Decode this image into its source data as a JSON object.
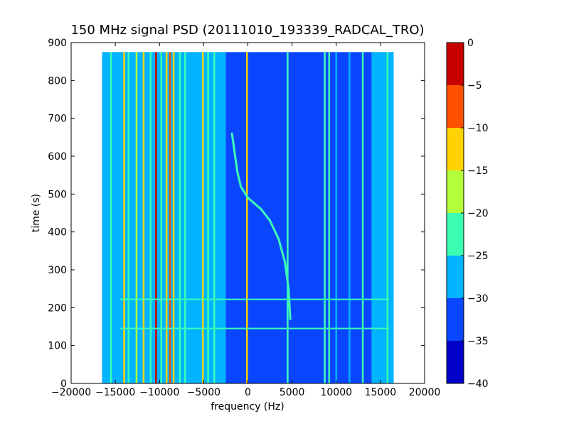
{
  "chart_data": {
    "type": "heatmap",
    "title": "150 MHz signal PSD (20111010_193339_RADCAL_TRO)",
    "xlabel": "frequency (Hz)",
    "ylabel": "time (s)",
    "xlim": [
      -20000,
      20000
    ],
    "ylim": [
      0,
      900
    ],
    "x_ticks": [
      "−20000",
      "−15000",
      "−10000",
      "−5000",
      "0",
      "5000",
      "10000",
      "15000",
      "20000"
    ],
    "x_tick_values": [
      -20000,
      -15000,
      -10000,
      -5000,
      0,
      5000,
      10000,
      15000,
      20000
    ],
    "y_ticks": [
      "0",
      "100",
      "200",
      "300",
      "400",
      "500",
      "600",
      "700",
      "800",
      "900"
    ],
    "y_tick_values": [
      0,
      100,
      200,
      300,
      400,
      500,
      600,
      700,
      800,
      900
    ],
    "data_extent": {
      "x": [
        -16500,
        16500
      ],
      "y": [
        0,
        875
      ]
    },
    "colorbar": {
      "ticks": [
        "0",
        "−5",
        "−10",
        "−15",
        "−20",
        "−25",
        "−30",
        "−35",
        "−40"
      ],
      "tick_values": [
        0,
        -5,
        -10,
        -15,
        -20,
        -25,
        -30,
        -35,
        -40
      ],
      "range": [
        -40,
        0
      ],
      "levels": [
        {
          "from": -40,
          "to": -35,
          "color": "#0000c8"
        },
        {
          "from": -35,
          "to": -30,
          "color": "#0a46ff"
        },
        {
          "from": -30,
          "to": -25,
          "color": "#00b4ff"
        },
        {
          "from": -25,
          "to": -20,
          "color": "#3cffb4"
        },
        {
          "from": -20,
          "to": -15,
          "color": "#b4ff3c"
        },
        {
          "from": -15,
          "to": -10,
          "color": "#ffd200"
        },
        {
          "from": -10,
          "to": -5,
          "color": "#ff5000"
        },
        {
          "from": -5,
          "to": 0,
          "color": "#c80000"
        }
      ]
    },
    "regions": [
      {
        "x": [
          -16500,
          -2500
        ],
        "level": -27
      },
      {
        "x": [
          -2500,
          3500
        ],
        "level": -31
      },
      {
        "x": [
          3500,
          14000
        ],
        "level": -33
      },
      {
        "x": [
          14000,
          16500
        ],
        "level": -28
      }
    ],
    "vertical_lines": [
      {
        "x": -15500,
        "level": -23
      },
      {
        "x": -14000,
        "level": -13
      },
      {
        "x": -13500,
        "level": -22
      },
      {
        "x": -12600,
        "level": -18
      },
      {
        "x": -11800,
        "level": -13
      },
      {
        "x": -11000,
        "level": -23
      },
      {
        "x": -10400,
        "level": -3
      },
      {
        "x": -9800,
        "level": -22
      },
      {
        "x": -9200,
        "level": -13
      },
      {
        "x": -8800,
        "level": -8
      },
      {
        "x": -8400,
        "level": -13
      },
      {
        "x": -7700,
        "level": -22
      },
      {
        "x": -7100,
        "level": -23
      },
      {
        "x": -5100,
        "level": -13
      },
      {
        "x": -4500,
        "level": -22
      },
      {
        "x": -3800,
        "level": -23
      },
      {
        "x": -100,
        "level": -13
      },
      {
        "x": 4500,
        "level": -22
      },
      {
        "x": 8700,
        "level": -23
      },
      {
        "x": 9200,
        "level": -22
      },
      {
        "x": 10000,
        "level": -26
      },
      {
        "x": 11500,
        "level": -26
      },
      {
        "x": 13000,
        "level": -23
      },
      {
        "x": 15800,
        "level": -22
      }
    ],
    "horizontal_lines": [
      {
        "y": 145,
        "x": [
          -14500,
          16000
        ],
        "level": -22
      },
      {
        "y": 222,
        "x": [
          -14500,
          16000
        ],
        "level": -23
      }
    ],
    "signal_track": {
      "level": -20,
      "points": [
        [
          4800,
          170
        ],
        [
          4600,
          250
        ],
        [
          4200,
          320
        ],
        [
          3500,
          380
        ],
        [
          2500,
          430
        ],
        [
          1500,
          460
        ],
        [
          0,
          490
        ],
        [
          -800,
          520
        ],
        [
          -1200,
          560
        ],
        [
          -1500,
          610
        ],
        [
          -1800,
          660
        ]
      ]
    }
  }
}
